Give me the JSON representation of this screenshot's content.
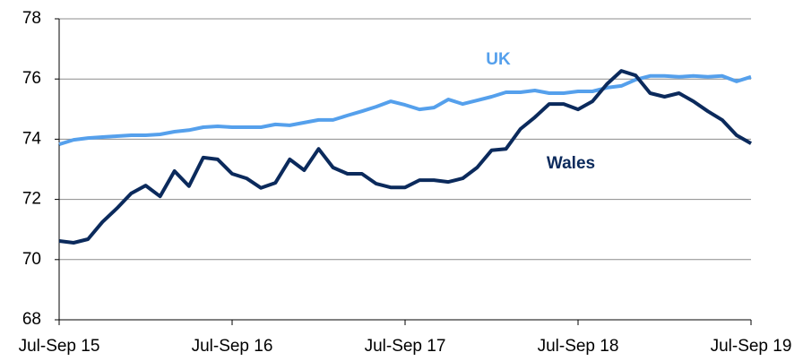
{
  "chart_data": {
    "type": "line",
    "categories": [
      "Jul-Sep 15",
      null,
      null,
      null,
      null,
      null,
      null,
      null,
      null,
      null,
      null,
      null,
      "Jul-Sep 16",
      null,
      null,
      null,
      null,
      null,
      null,
      null,
      null,
      null,
      null,
      null,
      "Jul-Sep 17",
      null,
      null,
      null,
      null,
      null,
      null,
      null,
      null,
      null,
      null,
      null,
      "Jul-Sep 18",
      null,
      null,
      null,
      null,
      null,
      null,
      null,
      null,
      null,
      null,
      null,
      "Jul-Sep 19"
    ],
    "series": [
      {
        "name": "UK",
        "color": "#55a0ec",
        "values": [
          73.83,
          73.98,
          74.04,
          74.07,
          74.1,
          74.13,
          74.13,
          74.16,
          74.25,
          74.3,
          74.4,
          74.43,
          74.4,
          74.4,
          74.4,
          74.49,
          74.46,
          74.55,
          74.64,
          74.64,
          74.79,
          74.93,
          75.08,
          75.26,
          75.14,
          74.99,
          75.05,
          75.32,
          75.17,
          75.29,
          75.41,
          75.56,
          75.56,
          75.62,
          75.53,
          75.53,
          75.59,
          75.59,
          75.71,
          75.77,
          75.98,
          76.1,
          76.1,
          76.07,
          76.1,
          76.07,
          76.1,
          75.92,
          76.07
        ]
      },
      {
        "name": "Wales",
        "color": "#0b2a5c",
        "values": [
          70.62,
          70.56,
          70.68,
          71.25,
          71.7,
          72.2,
          72.46,
          72.1,
          72.94,
          72.44,
          73.39,
          73.33,
          72.85,
          72.7,
          72.38,
          72.55,
          73.33,
          72.97,
          73.68,
          73.06,
          72.85,
          72.85,
          72.52,
          72.4,
          72.4,
          72.64,
          72.64,
          72.58,
          72.7,
          73.06,
          73.63,
          73.68,
          74.34,
          74.73,
          75.17,
          75.17,
          74.99,
          75.26,
          75.83,
          76.27,
          76.12,
          75.53,
          75.41,
          75.53,
          75.26,
          74.93,
          74.64,
          74.13,
          73.86
        ]
      }
    ],
    "ylim": [
      68,
      78
    ],
    "yticks": [
      68,
      70,
      72,
      74,
      76,
      78
    ],
    "grid": true
  }
}
